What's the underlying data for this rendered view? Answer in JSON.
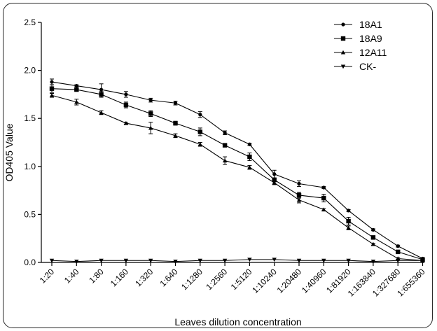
{
  "chart_data": {
    "type": "line",
    "title": "",
    "xlabel": "Leaves dilution concentration",
    "ylabel": "OD405 Value",
    "ylim": [
      0,
      2.5
    ],
    "yticks": [
      "0.0",
      "0.5",
      "1.0",
      "1.5",
      "2.0",
      "2.5"
    ],
    "ytick_values": [
      0,
      0.5,
      1.0,
      1.5,
      2.0,
      2.5
    ],
    "categories": [
      "1:20",
      "1:40",
      "1:80",
      "1:160",
      "1:320",
      "1:640",
      "1:1280",
      "1:2560",
      "1:5120",
      "1:10240",
      "1:20480",
      "1:40960",
      "1:81920",
      "1:163840",
      "1:327680",
      "1:655360"
    ],
    "legend_position": "top-right",
    "grid": false,
    "series": [
      {
        "name": "18A1",
        "marker": "circle",
        "values": [
          1.88,
          1.84,
          1.8,
          1.75,
          1.69,
          1.66,
          1.54,
          1.35,
          1.23,
          0.92,
          0.82,
          0.78,
          0.54,
          0.34,
          0.17,
          0.04
        ],
        "errors": [
          0.03,
          0.01,
          0.06,
          0.03,
          0.02,
          0.02,
          0.03,
          0.02,
          0.01,
          0.04,
          0.03,
          0.01,
          0.01,
          0.01,
          0.01,
          0.01
        ]
      },
      {
        "name": "18A9",
        "marker": "square",
        "values": [
          1.81,
          1.8,
          1.75,
          1.64,
          1.55,
          1.45,
          1.36,
          1.22,
          1.1,
          0.86,
          0.7,
          0.67,
          0.43,
          0.26,
          0.11,
          0.03
        ],
        "errors": [
          0.04,
          0.01,
          0.03,
          0.03,
          0.03,
          0.02,
          0.04,
          0.01,
          0.04,
          0.02,
          0.03,
          0.04,
          0.04,
          0.01,
          0.01,
          0.01
        ]
      },
      {
        "name": "12A11",
        "marker": "triangle-up",
        "values": [
          1.74,
          1.67,
          1.56,
          1.45,
          1.4,
          1.32,
          1.23,
          1.06,
          0.99,
          0.83,
          0.65,
          0.55,
          0.36,
          0.19,
          0.04,
          0.02
        ],
        "errors": [
          0.02,
          0.03,
          0.02,
          0.01,
          0.06,
          0.02,
          0.02,
          0.04,
          0.02,
          0.02,
          0.03,
          0.01,
          0.02,
          0.01,
          0.01,
          0.01
        ]
      },
      {
        "name": "CK-",
        "marker": "triangle-down",
        "values": [
          0.02,
          0.01,
          0.02,
          0.02,
          0.02,
          0.01,
          0.02,
          0.02,
          0.03,
          0.03,
          0.02,
          0.02,
          0.02,
          0.01,
          0.02,
          0.02
        ],
        "errors": [
          0,
          0,
          0,
          0,
          0,
          0,
          0,
          0,
          0,
          0,
          0,
          0,
          0,
          0,
          0,
          0
        ]
      }
    ]
  }
}
